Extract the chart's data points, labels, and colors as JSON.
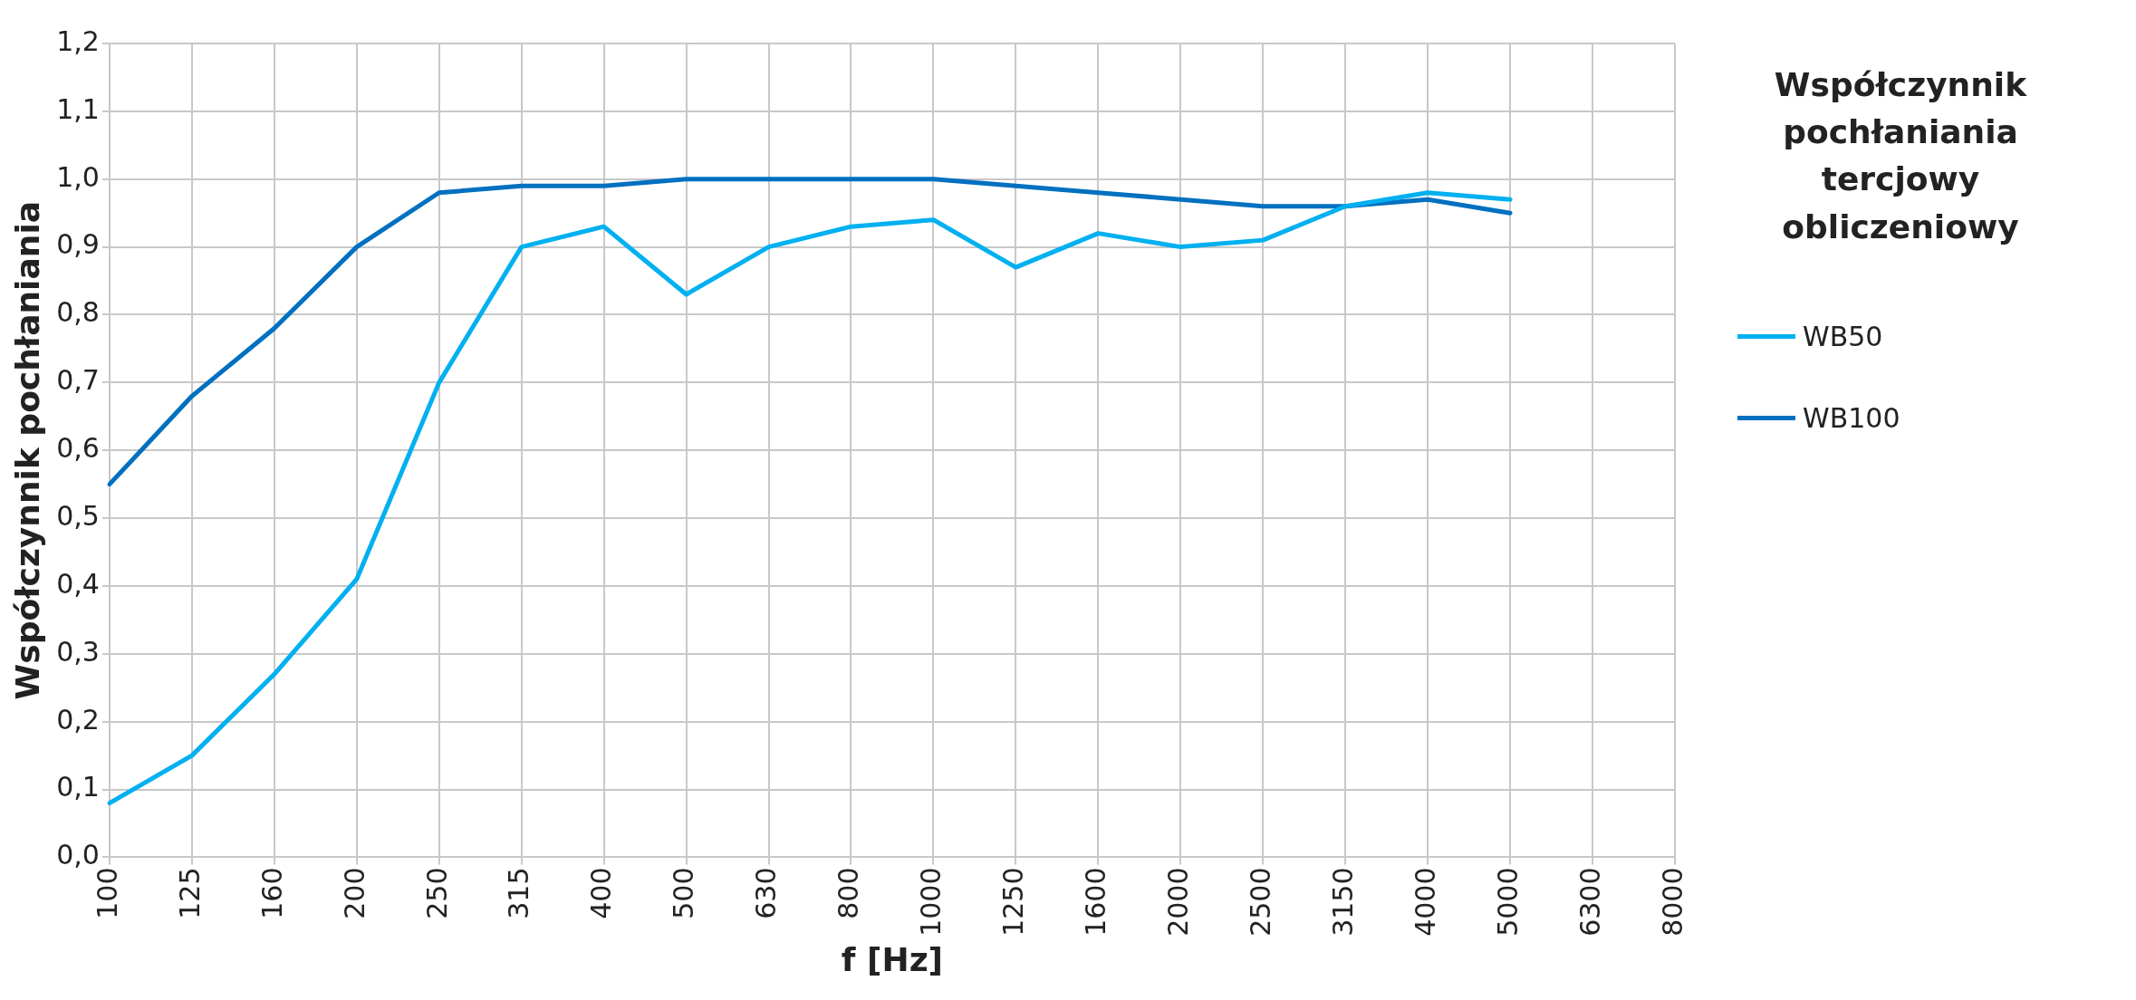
{
  "chart_data": {
    "type": "line",
    "xlabel": "f [Hz]",
    "ylabel": "Współczynnik pochłaniania",
    "legend_title": "Współczynnik pochłaniania tercjowy obliczeniowy",
    "categories": [
      "100",
      "125",
      "160",
      "200",
      "250",
      "315",
      "400",
      "500",
      "630",
      "800",
      "1000",
      "1250",
      "1600",
      "2000",
      "2500",
      "3150",
      "4000",
      "5000",
      "6300",
      "8000"
    ],
    "series": [
      {
        "name": "WB50",
        "color": "#00b0f0",
        "values": [
          0.08,
          0.15,
          0.27,
          0.41,
          0.7,
          0.9,
          0.93,
          0.83,
          0.9,
          0.93,
          0.94,
          0.87,
          0.92,
          0.9,
          0.91,
          0.96,
          0.98,
          0.97,
          null,
          null
        ]
      },
      {
        "name": "WB100",
        "color": "#0070c0",
        "values": [
          0.55,
          0.68,
          0.78,
          0.9,
          0.98,
          0.99,
          0.99,
          1.0,
          1.0,
          1.0,
          1.0,
          0.99,
          0.98,
          0.97,
          0.96,
          0.96,
          0.97,
          0.95,
          null,
          null
        ]
      }
    ],
    "ylim": [
      0,
      1.2
    ],
    "yticks": [
      {
        "value": 0,
        "label": "0,0"
      },
      {
        "value": 0.1,
        "label": "0,1"
      },
      {
        "value": 0.2,
        "label": "0,2"
      },
      {
        "value": 0.3,
        "label": "0,3"
      },
      {
        "value": 0.4,
        "label": "0,4"
      },
      {
        "value": 0.5,
        "label": "0,5"
      },
      {
        "value": 0.6,
        "label": "0,6"
      },
      {
        "value": 0.7,
        "label": "0,7"
      },
      {
        "value": 0.8,
        "label": "0,8"
      },
      {
        "value": 0.9,
        "label": "0,9"
      },
      {
        "value": 1.0,
        "label": "1,0"
      },
      {
        "value": 1.1,
        "label": "1,1"
      },
      {
        "value": 1.2,
        "label": "1,2"
      }
    ],
    "grid": true,
    "legend": "right",
    "marker": "none",
    "line_style": "solid"
  }
}
